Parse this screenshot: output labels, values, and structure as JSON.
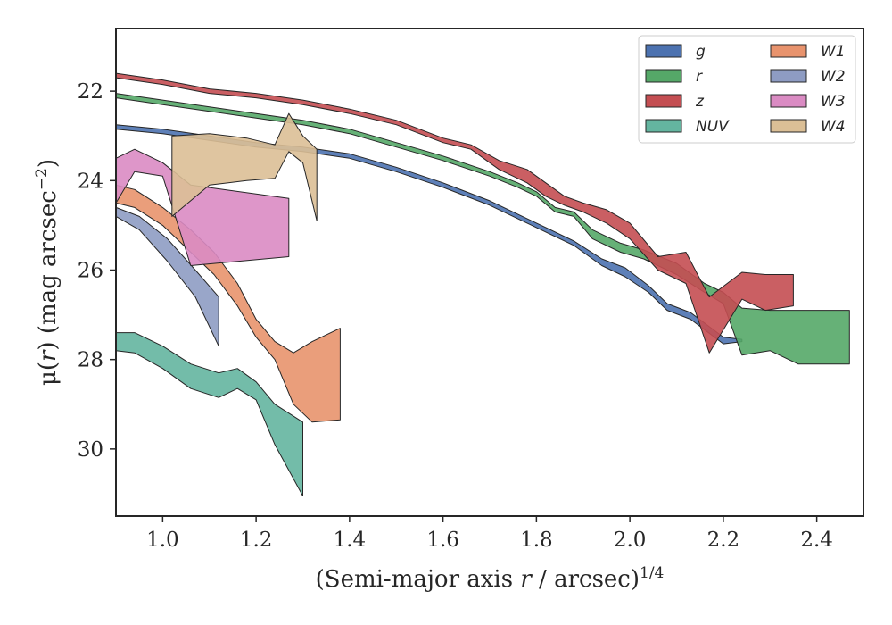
{
  "chart_data": {
    "type": "area",
    "xlabel": {
      "prefix": "(Semi-major axis ",
      "var": "r",
      "mid": " / arcsec)",
      "sup": "1/4"
    },
    "ylabel": {
      "pre": "μ(",
      "var": "r",
      "post": ") (mag arcsec",
      "sup": "−2",
      "close": ")"
    },
    "xlim": [
      0.9,
      2.5
    ],
    "ylim": [
      31.5,
      20.6
    ],
    "y_inverted": true,
    "grid": false,
    "legend_position": "top-right",
    "xticks": [
      1.0,
      1.2,
      1.4,
      1.6,
      1.8,
      2.0,
      2.2,
      2.4
    ],
    "xtick_labels": [
      "1.0",
      "1.2",
      "1.4",
      "1.6",
      "1.8",
      "2.0",
      "2.2",
      "2.4"
    ],
    "yticks": [
      22,
      24,
      26,
      28,
      30
    ],
    "ytick_labels": [
      "22",
      "24",
      "26",
      "28",
      "30"
    ],
    "series": [
      {
        "name": "g",
        "color": "#4c72b0",
        "x": [
          0.9,
          1.0,
          1.1,
          1.2,
          1.3,
          1.4,
          1.5,
          1.6,
          1.7,
          1.8,
          1.88,
          1.94,
          1.99,
          2.04,
          2.08,
          2.13,
          2.2,
          2.24
        ],
        "lo": [
          22.75,
          22.85,
          23.0,
          23.15,
          23.25,
          23.4,
          23.7,
          24.05,
          24.45,
          24.95,
          25.35,
          25.75,
          25.95,
          26.35,
          26.75,
          26.95,
          27.5,
          27.55
        ],
        "hi": [
          22.85,
          22.95,
          23.1,
          23.25,
          23.35,
          23.5,
          23.8,
          24.15,
          24.55,
          25.05,
          25.45,
          25.9,
          26.15,
          26.5,
          26.9,
          27.1,
          27.65,
          27.6
        ]
      },
      {
        "name": "r",
        "color": "#55a868",
        "x": [
          0.9,
          1.0,
          1.1,
          1.2,
          1.3,
          1.4,
          1.5,
          1.6,
          1.7,
          1.76,
          1.8,
          1.84,
          1.88,
          1.92,
          1.98,
          2.03,
          2.1,
          2.16,
          2.2,
          2.24,
          2.3,
          2.36,
          2.47
        ],
        "lo": [
          22.05,
          22.2,
          22.35,
          22.5,
          22.65,
          22.85,
          23.15,
          23.45,
          23.8,
          24.05,
          24.25,
          24.6,
          24.7,
          25.1,
          25.4,
          25.55,
          25.85,
          26.3,
          26.5,
          26.85,
          26.9,
          26.9,
          26.9
        ],
        "hi": [
          22.15,
          22.3,
          22.45,
          22.6,
          22.75,
          22.95,
          23.25,
          23.55,
          23.9,
          24.15,
          24.35,
          24.7,
          24.8,
          25.3,
          25.6,
          25.75,
          26.1,
          26.5,
          26.75,
          27.9,
          27.8,
          28.1,
          28.1
        ]
      },
      {
        "name": "z",
        "color": "#c44e52",
        "x": [
          0.9,
          1.0,
          1.1,
          1.2,
          1.3,
          1.4,
          1.5,
          1.6,
          1.66,
          1.72,
          1.78,
          1.82,
          1.86,
          1.9,
          1.95,
          2.0,
          2.06,
          2.12,
          2.17,
          2.24,
          2.29,
          2.35
        ],
        "lo": [
          21.6,
          21.75,
          21.95,
          22.05,
          22.2,
          22.4,
          22.65,
          23.05,
          23.2,
          23.55,
          23.75,
          24.05,
          24.35,
          24.5,
          24.65,
          24.95,
          25.7,
          25.6,
          26.6,
          26.05,
          26.1,
          26.1
        ],
        "hi": [
          21.7,
          21.85,
          22.05,
          22.15,
          22.3,
          22.5,
          22.75,
          23.15,
          23.3,
          23.75,
          24.05,
          24.35,
          24.55,
          24.7,
          24.95,
          25.3,
          26.0,
          26.3,
          27.85,
          26.65,
          26.9,
          26.8
        ]
      },
      {
        "name": "NUV",
        "color": "#64b5a0",
        "x": [
          0.9,
          0.94,
          1.0,
          1.06,
          1.12,
          1.16,
          1.2,
          1.24,
          1.3
        ],
        "lo": [
          27.4,
          27.4,
          27.7,
          28.1,
          28.3,
          28.2,
          28.5,
          29.0,
          29.4
        ],
        "hi": [
          27.8,
          27.85,
          28.2,
          28.65,
          28.85,
          28.65,
          28.9,
          29.9,
          31.05
        ]
      },
      {
        "name": "W1",
        "color": "#e8936d",
        "x": [
          0.9,
          0.94,
          1.0,
          1.06,
          1.11,
          1.16,
          1.2,
          1.24,
          1.28,
          1.32,
          1.38
        ],
        "lo": [
          24.1,
          24.2,
          24.6,
          25.1,
          25.6,
          26.3,
          27.1,
          27.6,
          27.85,
          27.6,
          27.3
        ],
        "hi": [
          24.5,
          24.6,
          25.0,
          25.6,
          26.1,
          26.8,
          27.5,
          28.0,
          29.0,
          29.4,
          29.35
        ]
      },
      {
        "name": "W2",
        "color": "#8e9cc3",
        "x": [
          0.9,
          0.95,
          1.01,
          1.07,
          1.12
        ],
        "lo": [
          24.6,
          24.8,
          25.3,
          26.0,
          26.6
        ],
        "hi": [
          24.8,
          25.1,
          25.8,
          26.6,
          27.7
        ]
      },
      {
        "name": "W3",
        "color": "#da8bc3",
        "x": [
          0.9,
          0.94,
          1.0,
          1.06,
          1.27
        ],
        "lo": [
          23.5,
          23.3,
          23.6,
          24.1,
          24.4
        ],
        "hi": [
          24.5,
          23.8,
          23.9,
          25.9,
          25.7
        ]
      },
      {
        "name": "W4",
        "color": "#dbbf96",
        "x": [
          1.02,
          1.1,
          1.18,
          1.24,
          1.27,
          1.3,
          1.33
        ],
        "lo": [
          23.0,
          22.95,
          23.05,
          23.2,
          22.5,
          23.0,
          23.3
        ],
        "hi": [
          24.8,
          24.1,
          24.0,
          23.95,
          23.35,
          23.6,
          24.9
        ]
      }
    ]
  }
}
